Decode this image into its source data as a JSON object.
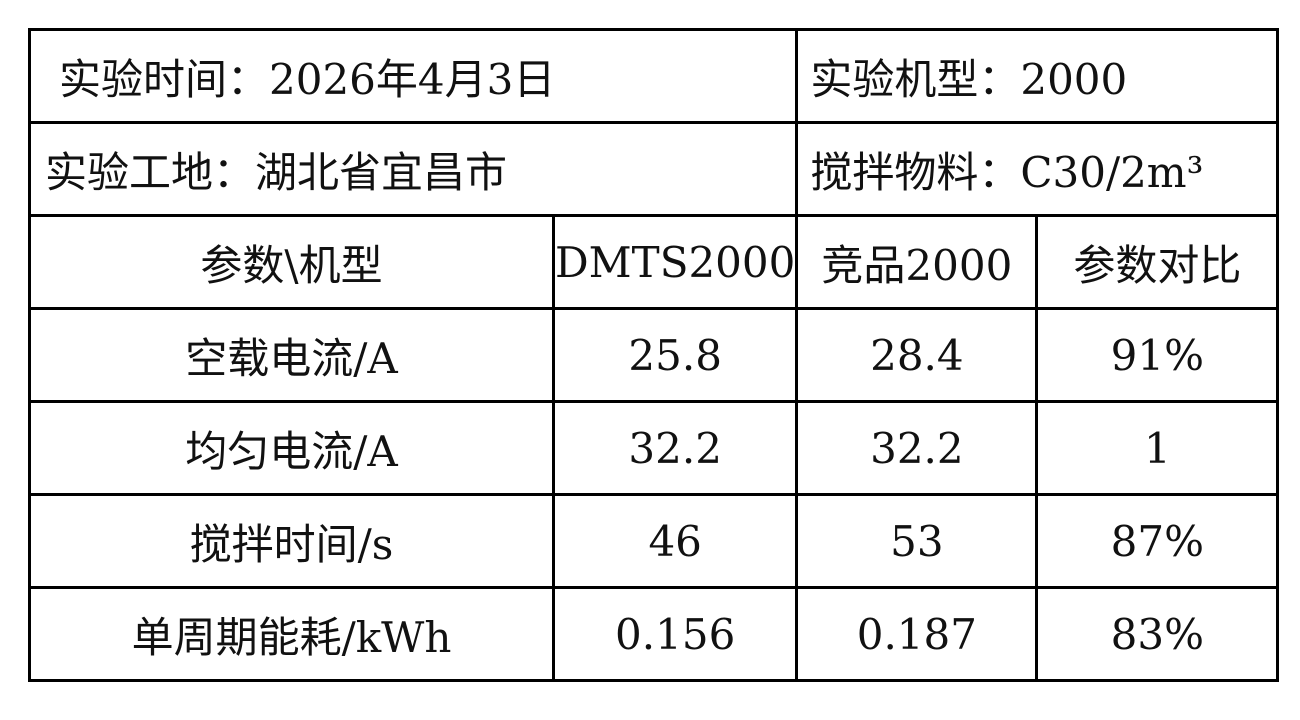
{
  "info": [
    [
      "实验时间：2026年4月3日",
      "实验机型：2000"
    ],
    [
      "实验工地：湖北省宜昌市",
      "搅拌物料：C30/2m³"
    ]
  ],
  "table": {
    "header": [
      "参数\\机型",
      "DMTS2000",
      "竞品2000",
      "参数对比"
    ],
    "rows": [
      [
        "空载电流/A",
        "25.8",
        "28.4",
        "91%"
      ],
      [
        "均匀电流/A",
        "32.2",
        "32.2",
        "1"
      ],
      [
        "搅拌时间/s",
        "46",
        "53",
        "87%"
      ],
      [
        "单周期能耗/kWh",
        "0.156",
        "0.187",
        "83%"
      ]
    ]
  }
}
